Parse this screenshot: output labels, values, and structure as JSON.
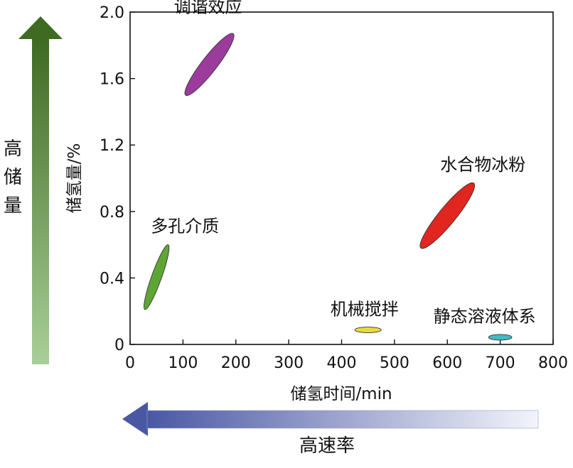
{
  "chart_data": {
    "type": "scatter",
    "title": "",
    "xlabel": "储氢时间/min",
    "ylabel": "储氢量/%",
    "xlim": [
      0,
      800
    ],
    "ylim": [
      0,
      2.0
    ],
    "x_ticks": [
      0,
      100,
      200,
      300,
      400,
      500,
      600,
      700,
      800
    ],
    "y_ticks": [
      0,
      0.4,
      0.8,
      1.2,
      1.6,
      2.0
    ],
    "x_tick_labels": [
      "0",
      "100",
      "200",
      "300",
      "400",
      "500",
      "600",
      "700",
      "800"
    ],
    "y_tick_labels": [
      "0",
      "0.4",
      "0.8",
      "1.2",
      "1.6",
      "2.0"
    ],
    "grid": false,
    "regions": [
      {
        "label": "调谐效应",
        "x": [
          105,
          195
        ],
        "y": [
          1.5,
          1.87
        ],
        "color": "#9b3b9c"
      },
      {
        "label": "多孔介质",
        "x": [
          28,
          72
        ],
        "y": [
          0.21,
          0.6
        ],
        "color": "#5ea634"
      },
      {
        "label": "水合物冰粉",
        "x": [
          550,
          650
        ],
        "y": [
          0.58,
          0.97
        ],
        "color": "#e0261e"
      },
      {
        "label": "机械搅拌",
        "x": [
          425,
          475
        ],
        "y": [
          0.075,
          0.1
        ],
        "color": "#e6dc3c"
      },
      {
        "label": "静态溶液体系",
        "x": [
          678,
          722
        ],
        "y": [
          0.028,
          0.058
        ],
        "color": "#43b9c2"
      }
    ],
    "annotations": {
      "vertical_arrow_label": "高储量",
      "horizontal_arrow_label": "高速率"
    }
  }
}
